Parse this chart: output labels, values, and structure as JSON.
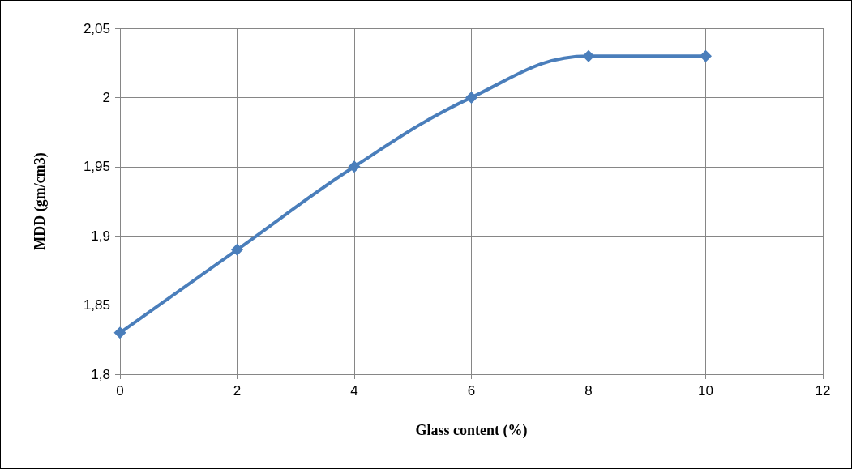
{
  "chart_data": {
    "type": "line",
    "xlabel": "Glass content (%)",
    "ylabel": "MDD (gm/cm3)",
    "x": [
      0,
      2,
      4,
      6,
      8,
      10
    ],
    "series": [
      {
        "color": "#4a7ebb",
        "values": [
          1.83,
          1.89,
          1.95,
          2.0,
          2.03,
          2.03
        ]
      }
    ],
    "xlim": [
      0,
      12
    ],
    "xticks": [
      0,
      2,
      4,
      6,
      8,
      10,
      12
    ],
    "ylim": [
      1.8,
      2.05
    ],
    "yticks": [
      {
        "value": 1.8,
        "label": "1,8"
      },
      {
        "value": 1.85,
        "label": "1,85"
      },
      {
        "value": 1.9,
        "label": "1,9"
      },
      {
        "value": 1.95,
        "label": "1,95"
      },
      {
        "value": 2,
        "label": "2"
      },
      {
        "value": 2.05,
        "label": "2,05"
      }
    ],
    "grid": true,
    "marker": "diamond",
    "line_style": "solid"
  }
}
